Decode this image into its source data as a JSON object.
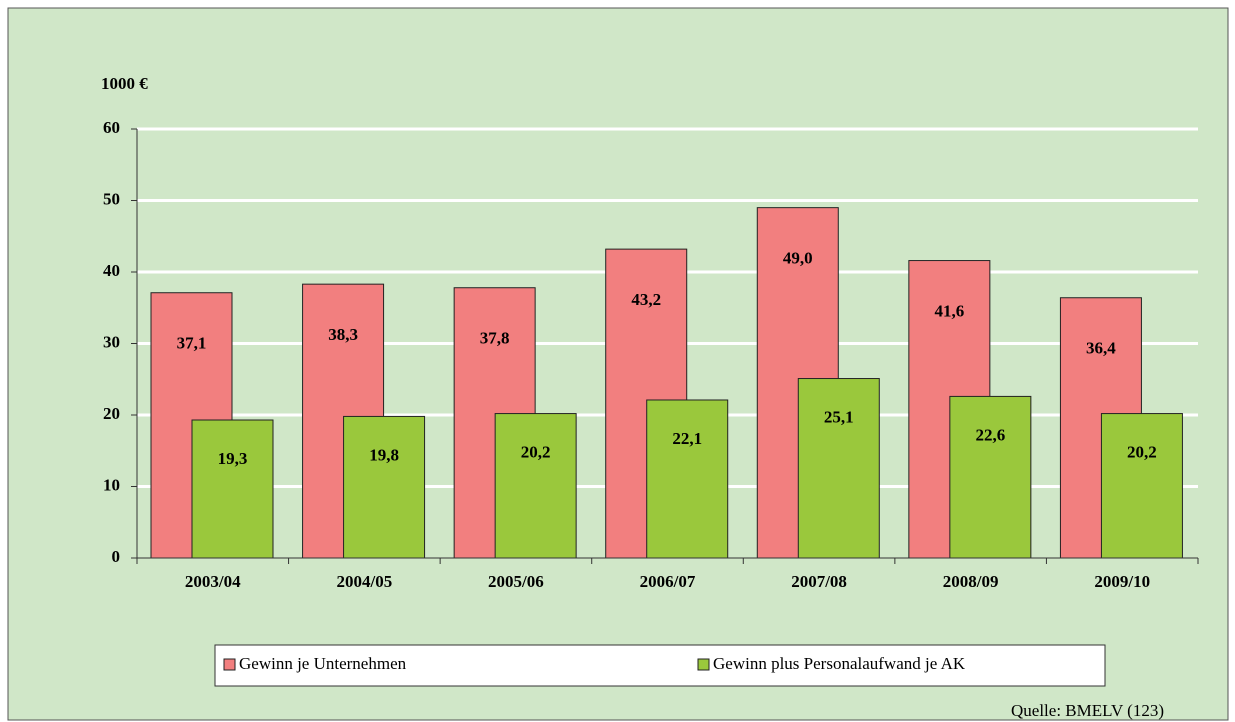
{
  "chart_data": {
    "type": "bar",
    "unit_label": "1000 €",
    "source": "Quelle: BMELV (123)",
    "categories": [
      "2003/04",
      "2004/05",
      "2005/06",
      "2006/07",
      "2007/08",
      "2008/09",
      "2009/10"
    ],
    "series": [
      {
        "name": "Gewinn je Unternehmen",
        "color": "#f27f7f",
        "values": [
          37.1,
          38.3,
          37.8,
          43.2,
          49.0,
          41.6,
          36.4
        ],
        "value_labels": [
          "37,1",
          "38,3",
          "37,8",
          "43,2",
          "49,0",
          "41,6",
          "36,4"
        ]
      },
      {
        "name": "Gewinn plus Personalaufwand je AK",
        "color": "#9ac83c",
        "values": [
          19.3,
          19.8,
          20.2,
          22.1,
          25.1,
          22.6,
          20.2
        ],
        "value_labels": [
          "19,3",
          "19,8",
          "20,2",
          "22,1",
          "25,1",
          "22,6",
          "20,2"
        ]
      }
    ],
    "ylim": [
      0,
      60
    ],
    "yticks": [
      0,
      10,
      20,
      30,
      40,
      50,
      60
    ],
    "grid": true,
    "legend": "bottom"
  }
}
